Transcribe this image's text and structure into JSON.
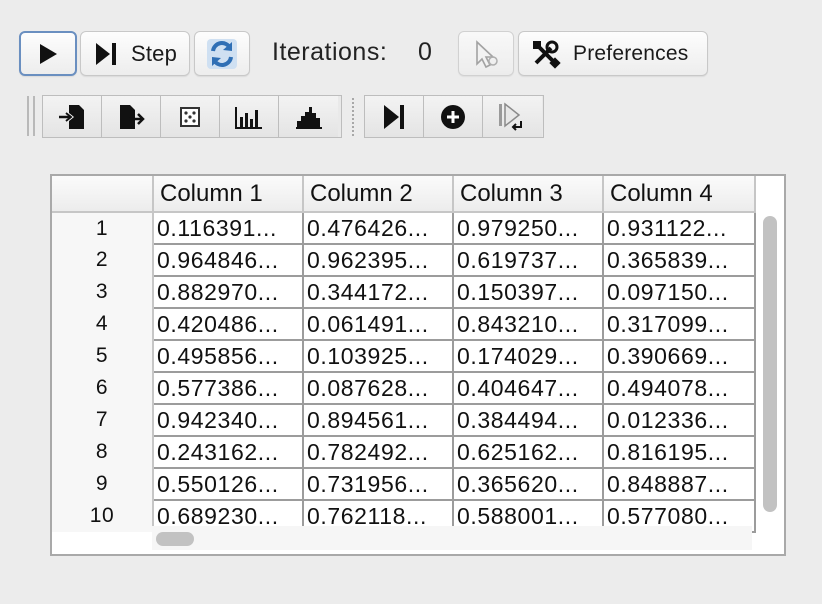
{
  "toolbar": {
    "run_icon": "play-icon",
    "step_label": "Step",
    "step_icon": "step-forward-icon",
    "reset_icon": "refresh-icon",
    "iterations_label": "Iterations:",
    "iterations_value": "0",
    "cursor_icon": "cursor-icon",
    "preferences_label": "Preferences",
    "preferences_icon": "tools-icon"
  },
  "secondary_toolbar": {
    "group1": [
      "import-icon",
      "export-icon",
      "dice-icon",
      "bar-chart-icon",
      "histogram-icon"
    ],
    "group2": [
      "step-end-icon",
      "add-circle-icon",
      "step-return-icon"
    ]
  },
  "table": {
    "columns": [
      "",
      "Column 1",
      "Column 2",
      "Column 3",
      "Column 4"
    ],
    "rows": [
      [
        "1",
        "0.116391...",
        "0.476426...",
        "0.979250...",
        "0.931122..."
      ],
      [
        "2",
        "0.964846...",
        "0.962395...",
        "0.619737...",
        "0.365839..."
      ],
      [
        "3",
        "0.882970...",
        "0.344172...",
        "0.150397...",
        "0.097150..."
      ],
      [
        "4",
        "0.420486...",
        "0.061491...",
        "0.843210...",
        "0.317099..."
      ],
      [
        "5",
        "0.495856...",
        "0.103925...",
        "0.174029...",
        "0.390669..."
      ],
      [
        "6",
        "0.577386...",
        "0.087628...",
        "0.404647...",
        "0.494078..."
      ],
      [
        "7",
        "0.942340...",
        "0.894561...",
        "0.384494...",
        "0.012336..."
      ],
      [
        "8",
        "0.243162...",
        "0.782492...",
        "0.625162...",
        "0.816195..."
      ],
      [
        "9",
        "0.550126...",
        "0.731956...",
        "0.365620...",
        "0.848887..."
      ],
      [
        "10",
        "0.689230...",
        "0.762118...",
        "0.588001...",
        "0.577080..."
      ]
    ]
  }
}
